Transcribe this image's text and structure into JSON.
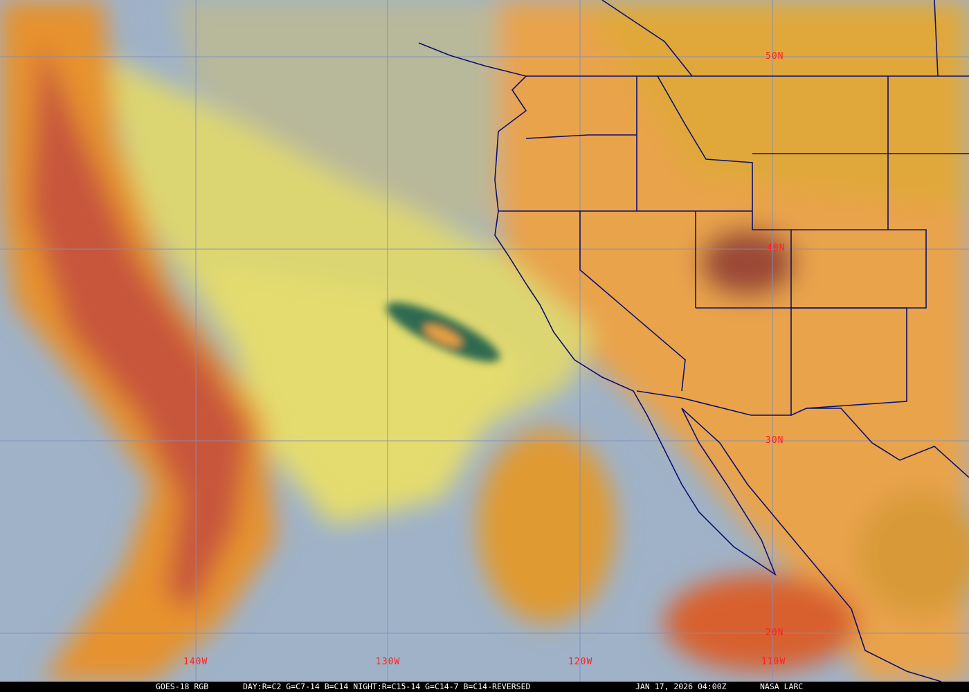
{
  "caption": {
    "product": "GOES-18 RGB",
    "recipe": "DAY:R=C2 G=C7-14 B=C14 NIGHT:R=C15-14 G=C14-7 B=C14-REVERSED",
    "timestamp": "JAN 17, 2026 04:00Z",
    "credit": "NASA LARC"
  },
  "grid": {
    "latitude_labels": [
      "50N",
      "40N",
      "30N",
      "20N"
    ],
    "longitude_labels": [
      "140W",
      "130W",
      "120W",
      "110W"
    ]
  },
  "colors": {
    "grid_line": "#7f8fbf",
    "label": "#ff2020",
    "boundary": "#0a1070",
    "land_dust": "#e8a048",
    "clear_sky": "#9ab0cc",
    "cloud_band": "#e89030",
    "cirrus": "#dcd878"
  }
}
